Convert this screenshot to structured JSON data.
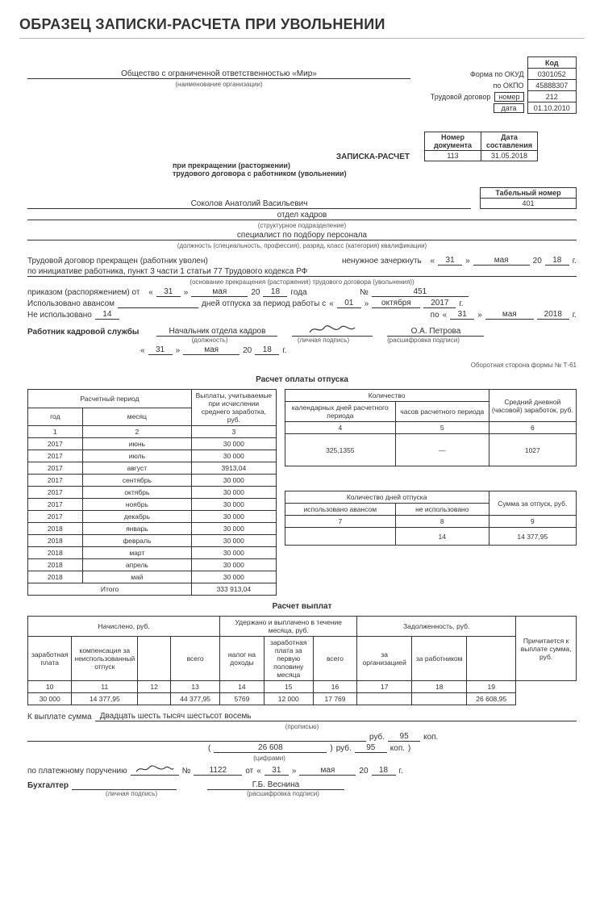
{
  "title": "ОБРАЗЕЦ ЗАПИСКИ-РАСЧЕТА ПРИ УВОЛЬНЕНИИ",
  "org": {
    "name": "Общество с ограниченной ответственностью «Мир»",
    "caption": "(наименование организации)",
    "form_okud_lbl": "Форма по ОКУД",
    "okpo_lbl": "по ОКПО",
    "contract_lbl": "Трудовой договор",
    "number_lbl": "номер",
    "date_lbl": "дата",
    "kod_lbl": "Код",
    "okud": "0301052",
    "okpo": "45888307",
    "contract_num": "212",
    "contract_date": "01.10.2010"
  },
  "doc": {
    "title1": "ЗАПИСКА-РАСЧЕТ",
    "title2": "при прекращении (расторжении)",
    "title3": "трудового договора с работником (увольнении)",
    "num_lbl": "Номер документа",
    "date_lbl": "Дата составления",
    "num": "113",
    "date": "31.05.2018"
  },
  "emp": {
    "name": "Соколов Анатолий Васильевич",
    "tab_lbl": "Табельный номер",
    "tab": "401",
    "dept": "отдел кадров",
    "dept_cap": "(структурное подразделение)",
    "pos": "специалист по подбору персонала",
    "pos_cap": "(должность (специальность, профессия), разряд, класс (категория) квалификации)"
  },
  "term": {
    "l1a": "Трудовой договор прекращен (работник уволен)",
    "l1b": "ненужное зачеркнуть",
    "l1_q1": "«",
    "l1_q2": "»",
    "l1_d": "31",
    "l1_m": "мая",
    "l1_yp": "20",
    "l1_y": "18",
    "l1_ys": "г.",
    "reason": "по инициативе работника, пункт 3 части 1 статьи 77 Трудового кодекса РФ",
    "reason_cap": "(основание прекращения (расторжения) трудового договора (увольнения))",
    "order_lbl": "приказом (распоряжением) от",
    "o_d": "31",
    "o_m": "мая",
    "o_y": "18",
    "o_yp": "20",
    "o_year": "года",
    "o_numlbl": "№",
    "o_num": "451",
    "adv_used_lbl": "Использовано авансом",
    "vac_lbl": "дней отпуска за период работы с",
    "v_q1": "«",
    "v_d1": "01",
    "v_q2": "»",
    "v_m1": "октября",
    "v_y1": "2017",
    "v_gs": "г.",
    "not_used_lbl": "Не использовано",
    "not_used": "14",
    "to_lbl": "по",
    "v_d2": "31",
    "v_m2": "мая",
    "v_y2": "2018",
    "hr_lbl": "Работник кадровой службы",
    "hr_pos": "Начальник отдела кадров",
    "hr_pos_cap": "(должность)",
    "sig_cap": "(личная подпись)",
    "hr_name": "О.А. Петрова",
    "hr_name_cap": "(расшифровка подписи)",
    "bot_d": "31",
    "bot_m": "мая",
    "bot_y": "18"
  },
  "back_lbl": "Оборотная сторона формы № Т-61",
  "vac_section": "Расчет оплаты отпуска",
  "left_tbl": {
    "h_period": "Расчетный период",
    "h_year": "год",
    "h_month": "месяц",
    "h_pay": "Выплаты, учитываемые при исчислении среднего заработка, руб.",
    "c1": "1",
    "c2": "2",
    "c3": "3",
    "rows": [
      {
        "y": "2017",
        "m": "июнь",
        "v": "30 000"
      },
      {
        "y": "2017",
        "m": "июль",
        "v": "30 000"
      },
      {
        "y": "2017",
        "m": "август",
        "v": "3913,04"
      },
      {
        "y": "2017",
        "m": "сентябрь",
        "v": "30 000"
      },
      {
        "y": "2017",
        "m": "октябрь",
        "v": "30 000"
      },
      {
        "y": "2017",
        "m": "ноябрь",
        "v": "30 000"
      },
      {
        "y": "2017",
        "m": "декабрь",
        "v": "30 000"
      },
      {
        "y": "2018",
        "m": "январь",
        "v": "30 000"
      },
      {
        "y": "2018",
        "m": "февраль",
        "v": "30 000"
      },
      {
        "y": "2018",
        "m": "март",
        "v": "30 000"
      },
      {
        "y": "2018",
        "m": "апрель",
        "v": "30 000"
      },
      {
        "y": "2018",
        "m": "май",
        "v": "30 000"
      }
    ],
    "total_lbl": "Итого",
    "total": "333 913,04"
  },
  "right_top": {
    "h_qty": "Количество",
    "h_days": "календарных дней расчетного периода",
    "h_hours": "часов расчетного периода",
    "h_avg": "Средний дневной (часовой) заработок, руб.",
    "c4": "4",
    "c5": "5",
    "c6": "6",
    "v4": "325,1355",
    "v5": "—",
    "v6": "1027"
  },
  "right_bot": {
    "h_qty": "Количество дней отпуска",
    "h_used": "использовано авансом",
    "h_not": "не использовано",
    "h_sum": "Сумма за отпуск, руб.",
    "c7": "7",
    "c8": "8",
    "c9": "9",
    "v7": "",
    "v8": "14",
    "v9": "14 377,95"
  },
  "pay_section": "Расчет выплат",
  "pay": {
    "h_acc": "Начислено, руб.",
    "h_wth": "Удержано и выплачено в течение месяца, руб.",
    "h_debt": "Задолженность, руб.",
    "h_due": "Причитается к выплате сумма, руб.",
    "h_sal": "заработная плата",
    "h_comp": "компенсация за неиспользованный отпуск",
    "h_bl": "",
    "h_all": "всего",
    "h_tax": "налог на доходы",
    "h_first": "заработная плата за первую половину месяца",
    "h_org": "за организацией",
    "h_emp": "за работником",
    "c10": "10",
    "c11": "11",
    "c12": "12",
    "c13": "13",
    "c14": "14",
    "c15": "15",
    "c16": "16",
    "c17": "17",
    "c18": "18",
    "c19": "19",
    "v10": "30 000",
    "v11": "14 377,95",
    "v12": "",
    "v13": "44 377,95",
    "v14": "5769",
    "v15": "12 000",
    "v16": "17 769",
    "v17": "",
    "v18": "",
    "v19": "26 608,95"
  },
  "foot": {
    "sum_lbl": "К выплате сумма",
    "sum_words": "Двадцать шесть тысяч шестьсот восемь",
    "sum_cap": "(прописью)",
    "rub": "руб.",
    "kop": "коп.",
    "kop_v": "95",
    "num": "26 608",
    "num_cap": "(цифрами)",
    "open": "(",
    "close": ")",
    "po_lbl": "по платежному поручению",
    "po_numlbl": "№",
    "po_num": "1122",
    "po_from": "от",
    "po_d": "31",
    "po_m": "мая",
    "po_yp": "20",
    "po_y": "18",
    "po_g": "г.",
    "acc_lbl": "Бухгалтер",
    "acc_name": "Г.Б. Веснина",
    "sig_cap": "(личная подпись)",
    "name_cap": "(расшифровка подписи)",
    "q1": "«",
    "q2": "»"
  }
}
